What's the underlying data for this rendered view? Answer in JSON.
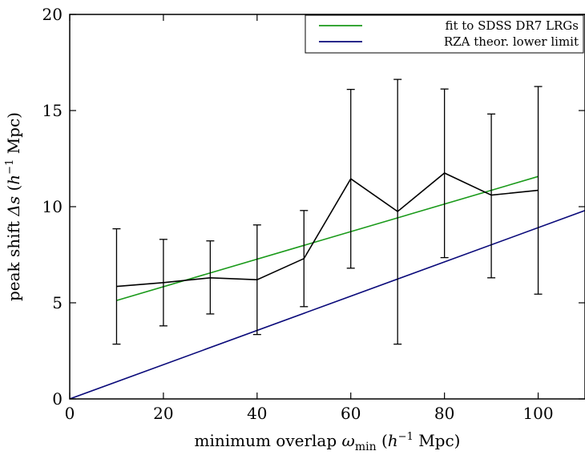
{
  "chart_data": {
    "type": "line",
    "xlabel": {
      "prefix": "minimum overlap ",
      "symbol": "ω",
      "subscript": "min",
      "unit_open": " (",
      "unit_h": "h",
      "unit_exp": "−1",
      "unit_rest": " Mpc)"
    },
    "ylabel": {
      "prefix": "peak shift ",
      "symbol": "Δs",
      "unit_open": " (",
      "unit_h": "h",
      "unit_exp": "−1",
      "unit_rest": " Mpc)"
    },
    "xlim": [
      0,
      110
    ],
    "ylim": [
      0,
      20
    ],
    "xticks": [
      0,
      20,
      40,
      60,
      80,
      100
    ],
    "yticks": [
      0,
      5,
      10,
      15,
      20
    ],
    "legend_position": "top-right",
    "series": [
      {
        "name": "",
        "color": "#000000",
        "x": [
          10,
          20,
          30,
          40,
          50,
          60,
          70,
          80,
          90,
          100
        ],
        "y": [
          5.85,
          6.05,
          6.3,
          6.2,
          7.3,
          11.45,
          9.75,
          11.75,
          10.6,
          10.85
        ],
        "err_low": [
          2.85,
          3.8,
          4.42,
          3.35,
          4.8,
          6.8,
          2.85,
          7.35,
          6.3,
          5.45
        ],
        "err_high": [
          8.85,
          8.3,
          8.22,
          9.05,
          9.8,
          16.1,
          16.62,
          16.12,
          14.82,
          16.25
        ]
      },
      {
        "name": "fit to SDSS DR7 LRGs",
        "color": "#1a9a1a",
        "x": [
          10,
          100
        ],
        "y": [
          5.12,
          11.57
        ]
      },
      {
        "name": "RZA theor. lower limit",
        "color": "#0a0a7a",
        "x": [
          0,
          110
        ],
        "y": [
          0,
          9.8
        ]
      }
    ]
  }
}
